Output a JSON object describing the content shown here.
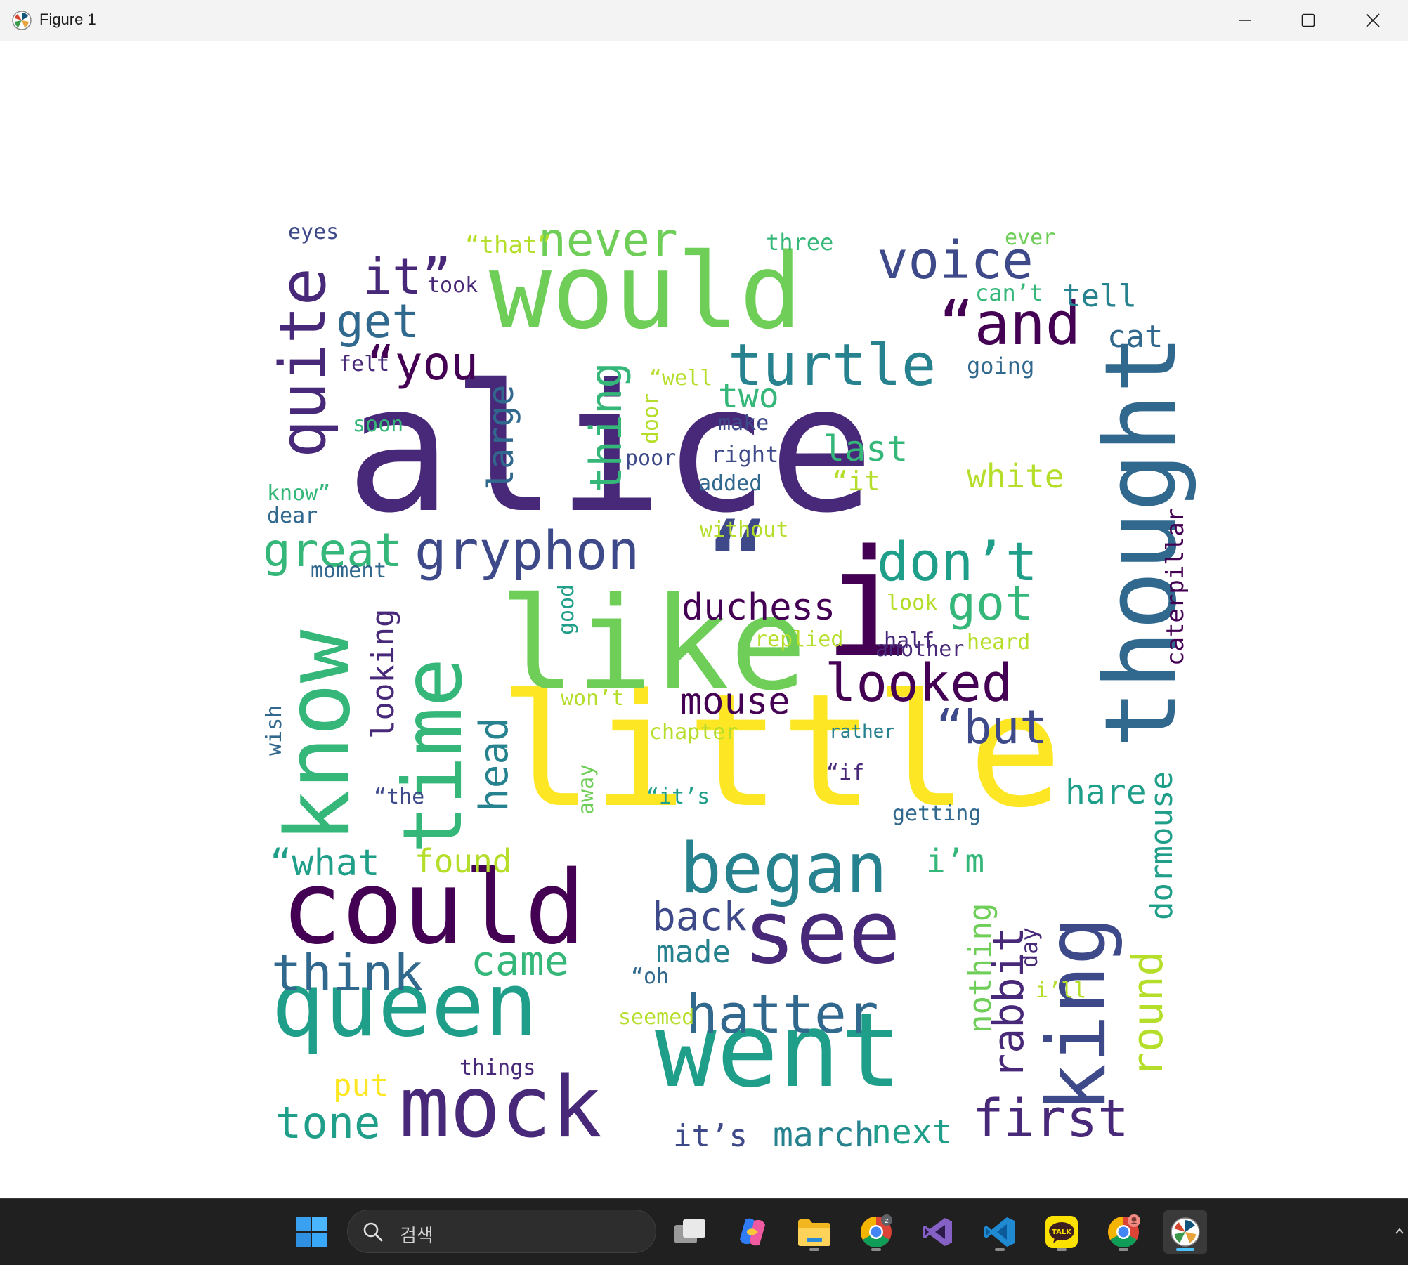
{
  "window": {
    "title": "Figure 1",
    "controls": {
      "minimize": "minimize-icon",
      "maximize": "maximize-icon",
      "close": "close-icon"
    }
  },
  "colors": {
    "viridis": [
      "#440154",
      "#482878",
      "#3e4989",
      "#31688e",
      "#26828e",
      "#1f9e89",
      "#35b779",
      "#6ece58",
      "#b5de2b",
      "#fde725"
    ]
  },
  "wordcloud": {
    "words": [
      {
        "text": "alice",
        "c": 1
      },
      {
        "text": "would",
        "c": 7
      },
      {
        "text": "little",
        "c": 9
      },
      {
        "text": "thought",
        "c": 3
      },
      {
        "text": "like",
        "c": 7
      },
      {
        "text": "i",
        "c": 0
      },
      {
        "text": "“",
        "c": 2
      },
      {
        "text": "know",
        "c": 6
      },
      {
        "text": "time",
        "c": 6
      },
      {
        "text": "could",
        "c": 0
      },
      {
        "text": "queen",
        "c": 5
      },
      {
        "text": "went",
        "c": 5
      },
      {
        "text": "king",
        "c": 2
      },
      {
        "text": "mock",
        "c": 1
      },
      {
        "text": "see",
        "c": 1
      },
      {
        "text": "began",
        "c": 4
      },
      {
        "text": "quite",
        "c": 1
      },
      {
        "text": "turtle",
        "c": 4
      },
      {
        "text": "“and",
        "c": 0
      },
      {
        "text": "voice",
        "c": 2
      },
      {
        "text": "never",
        "c": 7
      },
      {
        "text": "gryphon",
        "c": 2
      },
      {
        "text": "don’t",
        "c": 5
      },
      {
        "text": "looked",
        "c": 0
      },
      {
        "text": "hatter",
        "c": 3
      },
      {
        "text": "first",
        "c": 1
      },
      {
        "text": "think",
        "c": 3
      },
      {
        "text": "it”",
        "c": 1
      },
      {
        "text": "get",
        "c": 3
      },
      {
        "text": "“you",
        "c": 0
      },
      {
        "text": "great",
        "c": 6
      },
      {
        "text": "got",
        "c": 6
      },
      {
        "text": "“but",
        "c": 2
      },
      {
        "text": "rabbit",
        "c": 1
      },
      {
        "text": "round",
        "c": 8
      },
      {
        "text": "tone",
        "c": 5
      },
      {
        "text": "came",
        "c": 6
      },
      {
        "text": "thing",
        "c": 6
      },
      {
        "text": "duchess",
        "c": 0
      },
      {
        "text": "mouse",
        "c": 0
      },
      {
        "text": "head",
        "c": 4
      },
      {
        "text": "back",
        "c": 2
      },
      {
        "text": "“what",
        "c": 5
      },
      {
        "text": "found",
        "c": 8
      },
      {
        "text": "i’m",
        "c": 6
      },
      {
        "text": "last",
        "c": 6
      },
      {
        "text": "two",
        "c": 6
      },
      {
        "text": "white",
        "c": 8
      },
      {
        "text": "large",
        "c": 3
      },
      {
        "text": "looking",
        "c": 1
      },
      {
        "text": "made",
        "c": 4
      },
      {
        "text": "tell",
        "c": 4
      },
      {
        "text": "cat",
        "c": 3
      },
      {
        "text": "hare",
        "c": 5
      },
      {
        "text": "dormouse",
        "c": 5
      },
      {
        "text": "nothing",
        "c": 7
      },
      {
        "text": "caterpillar",
        "c": 0
      },
      {
        "text": "it’s",
        "c": 2
      },
      {
        "text": "march",
        "c": 4
      },
      {
        "text": "next",
        "c": 5
      },
      {
        "text": "put",
        "c": 9
      },
      {
        "text": "eyes",
        "c": 2
      },
      {
        "text": "“that”",
        "c": 8
      },
      {
        "text": "took",
        "c": 1
      },
      {
        "text": "three",
        "c": 6
      },
      {
        "text": "ever",
        "c": 7
      },
      {
        "text": "can’t",
        "c": 6
      },
      {
        "text": "felt",
        "c": 1
      },
      {
        "text": "“well",
        "c": 8
      },
      {
        "text": "going",
        "c": 3
      },
      {
        "text": "soon",
        "c": 6
      },
      {
        "text": "door",
        "c": 8
      },
      {
        "text": "make",
        "c": 2
      },
      {
        "text": "poor",
        "c": 2
      },
      {
        "text": "right",
        "c": 2
      },
      {
        "text": "“it",
        "c": 8
      },
      {
        "text": "know”",
        "c": 6
      },
      {
        "text": "added",
        "c": 3
      },
      {
        "text": "dear",
        "c": 3
      },
      {
        "text": "without",
        "c": 8
      },
      {
        "text": "moment",
        "c": 3
      },
      {
        "text": "good",
        "c": 5
      },
      {
        "text": "look",
        "c": 8
      },
      {
        "text": "replied",
        "c": 8
      },
      {
        "text": "half",
        "c": 1
      },
      {
        "text": "heard",
        "c": 8
      },
      {
        "text": "another",
        "c": 1
      },
      {
        "text": "wish",
        "c": 3
      },
      {
        "text": "won’t",
        "c": 8
      },
      {
        "text": "chapter",
        "c": 8
      },
      {
        "text": "rather",
        "c": 4
      },
      {
        "text": "away",
        "c": 7
      },
      {
        "text": "“the",
        "c": 2
      },
      {
        "text": "“it’s",
        "c": 5
      },
      {
        "text": "“if",
        "c": 1
      },
      {
        "text": "getting",
        "c": 3
      },
      {
        "text": "day",
        "c": 1
      },
      {
        "text": "“oh",
        "c": 3
      },
      {
        "text": "i’ll",
        "c": 8
      },
      {
        "text": "seemed",
        "c": 8
      },
      {
        "text": "things",
        "c": 1
      }
    ]
  },
  "taskbar": {
    "search_placeholder": "검색",
    "apps": [
      "windows-start-icon",
      "task-view-icon",
      "copilot-icon",
      "file-explorer-icon",
      "chrome-icon",
      "visual-studio-icon",
      "vscode-icon",
      "kakaotalk-icon",
      "chrome-profile-icon",
      "matplotlib-figure-icon"
    ],
    "kakao_label": "TALK"
  }
}
